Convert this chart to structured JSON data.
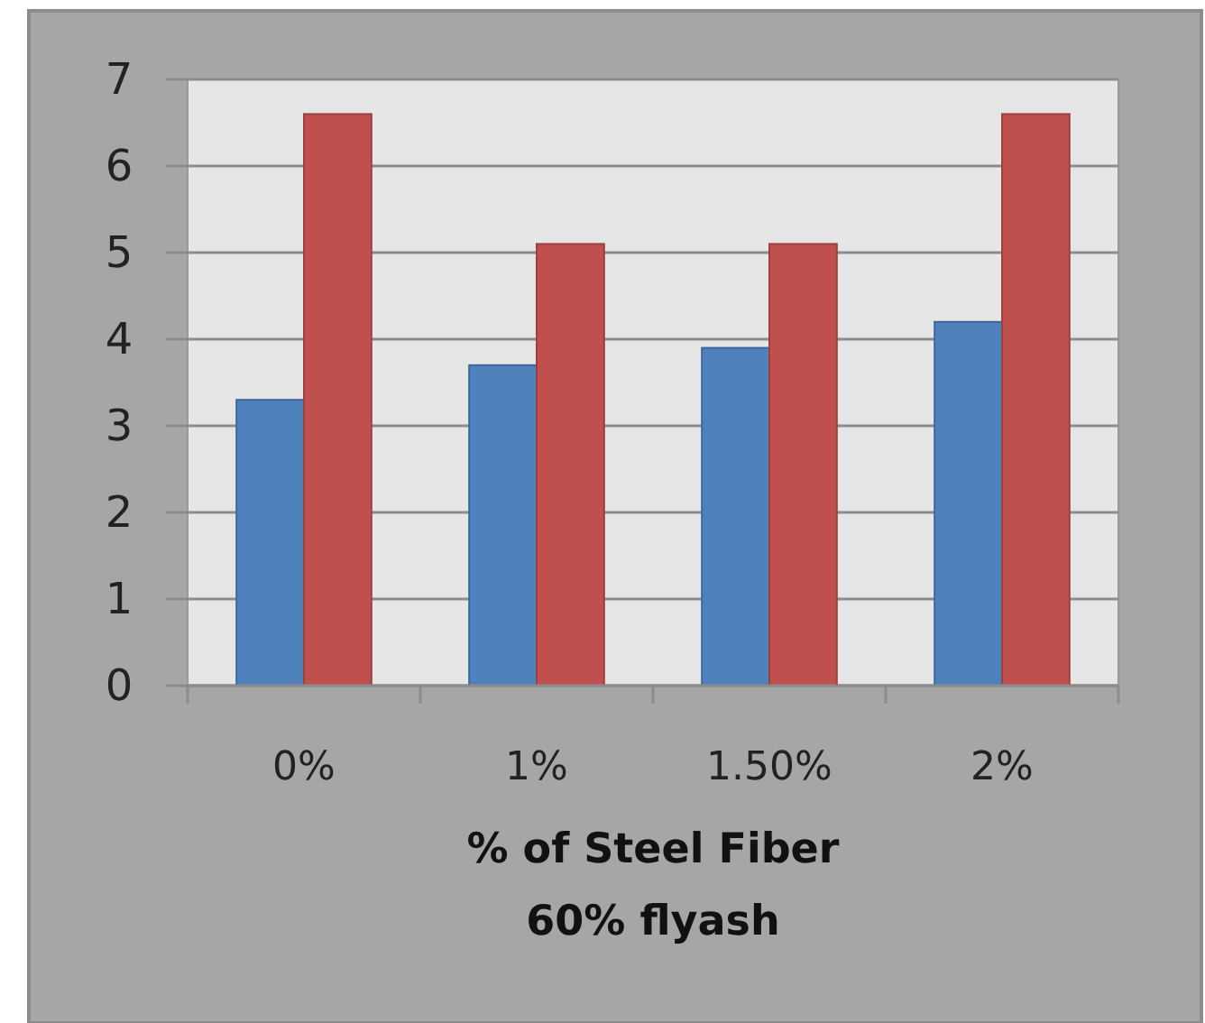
{
  "chart_data": {
    "type": "bar",
    "xlabel": "% of Steel Fiber\n60% flyash",
    "categories": [
      "0%",
      "1%",
      "1.50%",
      "2%"
    ],
    "series": [
      {
        "color": "#4f81bd",
        "values": [
          3.3,
          3.7,
          3.9,
          4.2
        ]
      },
      {
        "color": "#c0504d",
        "values": [
          6.6,
          5.1,
          5.1,
          6.6
        ]
      }
    ],
    "ylim": [
      0,
      7
    ],
    "yticks": [
      0,
      1,
      2,
      3,
      4,
      5,
      6,
      7
    ],
    "grid": "y"
  }
}
